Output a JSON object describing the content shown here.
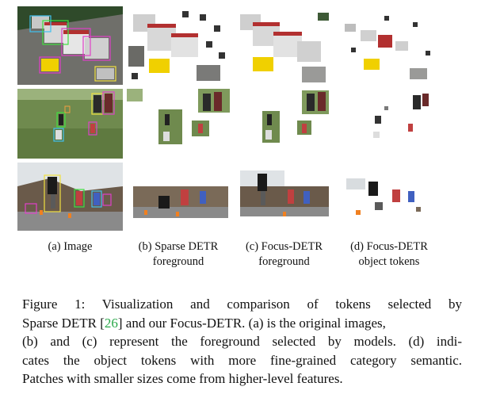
{
  "columns": [
    {
      "label_a": "(a) Image",
      "label_b": ""
    },
    {
      "label_a": "(b) Sparse DETR",
      "label_b": "foreground"
    },
    {
      "label_a": "(c) Focus-DETR",
      "label_b": "foreground"
    },
    {
      "label_a": "(d) Focus-DETR",
      "label_b": "object tokens"
    }
  ],
  "rows": [
    {
      "scene": "street-traffic"
    },
    {
      "scene": "grass-field-people-dogs"
    },
    {
      "scene": "skateboard-street"
    }
  ],
  "caption": {
    "line1": "Figure 1:  Visualization and comparison of tokens selected by",
    "line2_a": "Sparse DETR [",
    "line2_ref": "26",
    "line2_b": "] and our Focus-DETR. (a) is the original images,",
    "line3": "(b) and (c) represent the foreground selected by models. (d) indi-",
    "line4": "cates the object tokens with more fine-grained category semantic.",
    "line5": "Patches with smaller sizes come from higher-level features."
  },
  "colors": {
    "reference_link": "#2aa84a",
    "box_magenta": "#e040c8",
    "box_green": "#40e040",
    "box_yellow": "#f0e040",
    "box_cyan": "#40c0f0"
  }
}
